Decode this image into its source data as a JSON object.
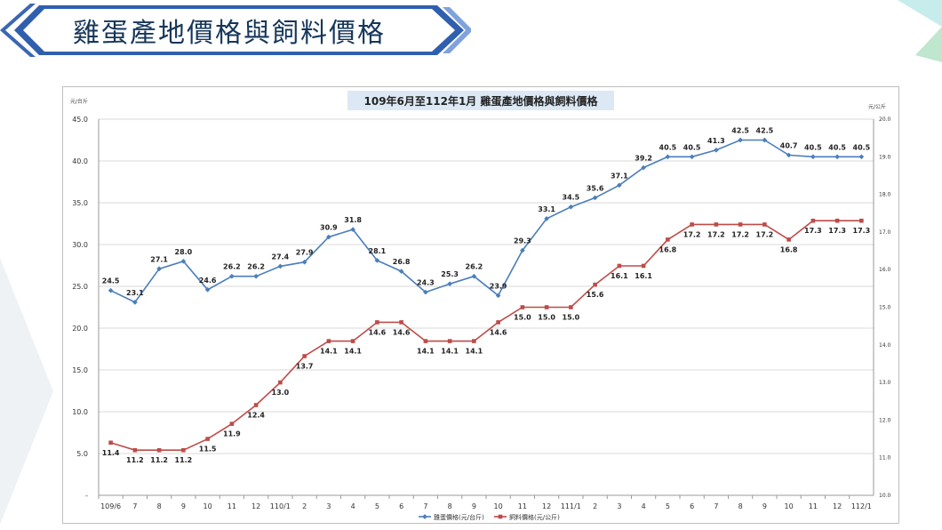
{
  "header": {
    "title": "雞蛋產地價格與飼料價格"
  },
  "chart_data": {
    "type": "line",
    "title": "109年6月至112年1月 雞蛋產地價格與飼料價格",
    "left_axis": {
      "label": "元/台斤",
      "ylim": [
        0,
        45
      ],
      "ticks": [
        "-",
        "5.0",
        "10.0",
        "15.0",
        "20.0",
        "25.0",
        "30.0",
        "35.0",
        "40.0",
        "45.0"
      ]
    },
    "right_axis": {
      "label": "元/公斤",
      "ylim": [
        10,
        20
      ],
      "ticks": [
        "10.0",
        "11.0",
        "12.0",
        "13.0",
        "14.0",
        "15.0",
        "16.0",
        "17.0",
        "18.0",
        "19.0",
        "20.0"
      ]
    },
    "categories": [
      "109/6",
      "7",
      "8",
      "9",
      "10",
      "11",
      "12",
      "110/1",
      "2",
      "3",
      "4",
      "5",
      "6",
      "7",
      "8",
      "9",
      "10",
      "11",
      "12",
      "111/1",
      "2",
      "3",
      "4",
      "5",
      "6",
      "7",
      "8",
      "9",
      "10",
      "11",
      "12",
      "112/1"
    ],
    "series": [
      {
        "name": "雞蛋價格(元/台斤)",
        "axis": "left",
        "color": "#4a7ebb",
        "values": [
          24.5,
          23.1,
          27.1,
          28.0,
          24.6,
          26.2,
          26.2,
          27.4,
          27.9,
          30.9,
          31.8,
          28.1,
          26.8,
          24.3,
          25.3,
          26.2,
          23.9,
          29.3,
          33.1,
          34.5,
          35.6,
          37.1,
          39.2,
          40.5,
          40.5,
          41.3,
          42.5,
          42.5,
          40.7,
          40.5,
          40.5,
          40.5
        ]
      },
      {
        "name": "飼料價格(元/公斤)",
        "axis": "right",
        "color": "#be4b48",
        "values": [
          11.4,
          11.2,
          11.2,
          11.2,
          11.5,
          11.9,
          12.4,
          13.0,
          13.7,
          14.1,
          14.1,
          14.6,
          14.6,
          14.1,
          14.1,
          14.1,
          14.6,
          15.0,
          15.0,
          15.0,
          15.6,
          16.1,
          16.1,
          16.8,
          17.2,
          17.2,
          17.2,
          17.2,
          16.8,
          17.3,
          17.3,
          17.3
        ]
      }
    ],
    "grid": true,
    "legend_position": "bottom"
  }
}
